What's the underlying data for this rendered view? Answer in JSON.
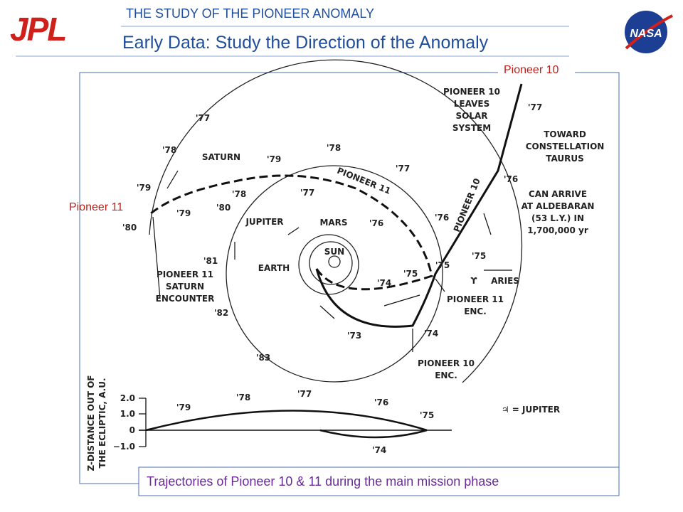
{
  "header": {
    "subtitle": "THE STUDY OF THE PIONEER ANOMALY",
    "title": "Early Data: Study the Direction of the Anomaly"
  },
  "logos": {
    "left": "JPL",
    "right": "NASA"
  },
  "callouts": {
    "pioneer10": "Pioneer 10",
    "pioneer11": "Pioneer 11"
  },
  "figure": {
    "labels": [
      "'77",
      "'78",
      "SATURN",
      "'79",
      "'80",
      "'79",
      "'78",
      "'80",
      "'79",
      "'78",
      "'77",
      "PIONEER 11",
      "'77",
      "'76",
      "'76",
      "JUPITER",
      "MARS",
      "SUN",
      "EARTH",
      "'81",
      [
        "PIONEER 11",
        "SATURN",
        "ENCOUNTER"
      ],
      "'82",
      "'83",
      "'75",
      "'75",
      "'74",
      "'73",
      "'74",
      [
        "PIONEER 10",
        "ENC."
      ],
      [
        "PIONEER 11",
        "ENC."
      ],
      "ϒ",
      "ARIES",
      "'75",
      "PIONEER 10",
      "'76",
      [
        "CAN ARRIVE",
        "AT ALDEBARAN",
        "(53 L.Y.) IN",
        "1,700,000 yr"
      ],
      [
        "TOWARD",
        "CONSTELLATION",
        "TAURUS"
      ],
      [
        "PIONEER 10",
        "LEAVES",
        "SOLAR",
        "SYSTEM"
      ],
      "'77",
      "♃ = JUPITER"
    ],
    "z_plot": {
      "axis_label": [
        "Z-DISTANCE OUT OF",
        "THE ECLIPTIC, A.U."
      ],
      "ticks": [
        "2.0",
        "1.0",
        "0",
        "−1.0"
      ],
      "labels": [
        "'79",
        "'78",
        "'77",
        "'76",
        "'75",
        "'74"
      ]
    }
  },
  "caption": "Trajectories of Pioneer 10 & 11 during the main mission phase"
}
